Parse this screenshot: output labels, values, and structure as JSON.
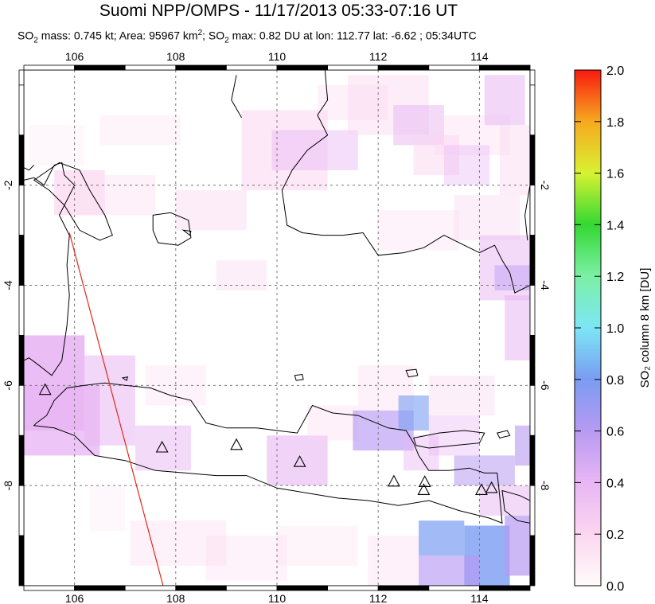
{
  "header": {
    "title": "Suomi NPP/OMPS - 11/17/2013 05:33-07:16 UT",
    "stats": {
      "mass_label": "mass: 0.745 kt; Area: 95967 km",
      "max_label": "; SO",
      "max_text": " max: 0.82 DU at lon: 112.77 lat: -6.62 ; 05:34UTC",
      "so": "SO",
      "sub2": "2",
      "sup2": "2"
    }
  },
  "map": {
    "lon_range": [
      105,
      115
    ],
    "lat_range": [
      -10,
      0.3
    ],
    "lon_ticks": [
      "106",
      "108",
      "110",
      "112",
      "114"
    ],
    "lat_ticks": [
      "-2",
      "-4",
      "-6",
      "-8"
    ],
    "lat_ticks_right": [
      "-2",
      "-4",
      "-6",
      "-8"
    ],
    "volcano_icon": "triangle-icon",
    "volcanoes": [
      {
        "lon": 105.42,
        "lat": -6.1
      },
      {
        "lon": 107.73,
        "lat": -7.25
      },
      {
        "lon": 109.2,
        "lat": -7.2
      },
      {
        "lon": 110.45,
        "lat": -7.54
      },
      {
        "lon": 112.31,
        "lat": -7.93
      },
      {
        "lon": 112.92,
        "lat": -7.94
      },
      {
        "lon": 112.9,
        "lat": -8.1
      },
      {
        "lon": 114.04,
        "lat": -8.1
      },
      {
        "lon": 114.24,
        "lat": -8.06
      }
    ],
    "track_line": {
      "color": "#e8261a",
      "from": {
        "lon": 105.9,
        "lat": -2.95
      },
      "to": {
        "lon": 107.75,
        "lat": -10.0
      }
    }
  },
  "colorbar": {
    "title": "SO₂ column 8 km [DU]",
    "ticks": [
      "0.0",
      "0.2",
      "0.4",
      "0.6",
      "0.8",
      "1.0",
      "1.2",
      "1.4",
      "1.6",
      "1.8",
      "2.0"
    ],
    "min": 0.0,
    "max": 2.0,
    "colors": [
      "#fffcfa",
      "#fbd6f0",
      "#e8b6f4",
      "#b89af2",
      "#7a9cf2",
      "#7ce6f5",
      "#7cf0a6",
      "#34d833",
      "#d8f232",
      "#f7a91f",
      "#f81a10"
    ]
  }
}
